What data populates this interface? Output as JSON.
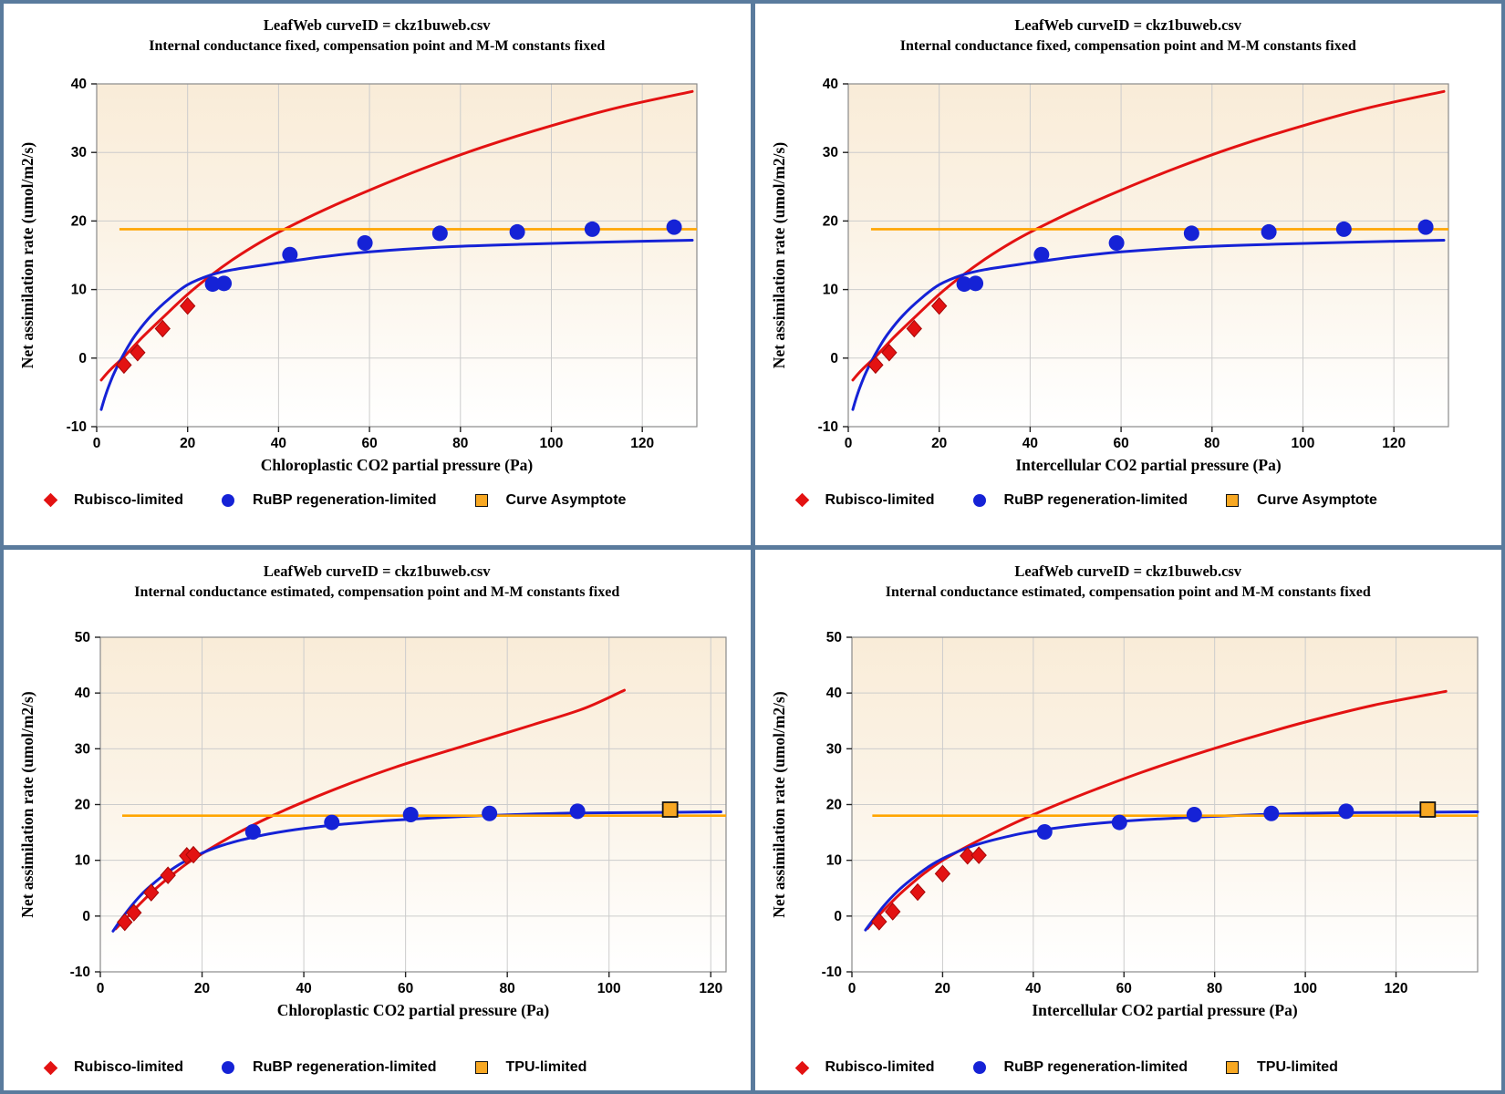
{
  "colors": {
    "red": "#e31212",
    "blue": "#1522d6",
    "orange_line": "#ffa500",
    "square_fill": "#f7a823",
    "grid": "#cccccc",
    "frame": "#8a8a8a",
    "border": "#5a7b9d",
    "plot_bg_top": "#f9ecd8",
    "plot_bg_bottom": "#ffffff",
    "text": "#000000"
  },
  "chart_data": [
    {
      "type": "scatter",
      "title": "LeafWeb curveID = ckz1buweb.csv",
      "subtitle": "Internal conductance fixed, compensation point and M-M constants fixed",
      "xlabel": "Chloroplastic CO2 partial pressure (Pa)",
      "ylabel": "Net assimilation rate (umol/m2/s)",
      "xlim": [
        0,
        132
      ],
      "ylim": [
        -10,
        40
      ],
      "xticks": [
        0,
        20,
        40,
        60,
        80,
        100,
        120
      ],
      "yticks": [
        -10,
        0,
        10,
        20,
        30,
        40
      ],
      "grid": true,
      "legend_position": "bottom",
      "asymptote": {
        "value": 18.8,
        "x_start": 5,
        "x_end": 132
      },
      "series": [
        {
          "name": "Rubisco-limited",
          "marker": "diamond",
          "points": [
            [
              6,
              -1.0
            ],
            [
              9,
              0.8
            ],
            [
              14.5,
              4.3
            ],
            [
              20,
              7.6
            ]
          ]
        },
        {
          "name": "RuBP regeneration-limited",
          "marker": "circle",
          "points": [
            [
              25.5,
              10.8
            ],
            [
              28,
              10.9
            ],
            [
              42.5,
              15.1
            ],
            [
              59,
              16.8
            ],
            [
              75.5,
              18.2
            ],
            [
              92.5,
              18.4
            ],
            [
              109,
              18.8
            ],
            [
              127,
              19.1
            ]
          ]
        },
        {
          "name": "Curve Asymptote",
          "marker": "square",
          "points": []
        }
      ],
      "curves": [
        {
          "name": "rubisco-curve",
          "color_key": "red",
          "points": [
            [
              1,
              -3.2
            ],
            [
              3,
              -1.7
            ],
            [
              6,
              0.2
            ],
            [
              10,
              3.0
            ],
            [
              15,
              6.2
            ],
            [
              20,
              9.3
            ],
            [
              25,
              12.0
            ],
            [
              30,
              14.4
            ],
            [
              36,
              16.9
            ],
            [
              41,
              18.7
            ],
            [
              50,
              21.6
            ],
            [
              60,
              24.5
            ],
            [
              72,
              27.7
            ],
            [
              85,
              30.8
            ],
            [
              100,
              33.9
            ],
            [
              115,
              36.6
            ],
            [
              131,
              38.9
            ]
          ]
        },
        {
          "name": "rubp-curve",
          "color_key": "blue",
          "points": [
            [
              1,
              -7.5
            ],
            [
              2,
              -5.3
            ],
            [
              3.5,
              -2.7
            ],
            [
              5,
              -0.6
            ],
            [
              7,
              1.8
            ],
            [
              9,
              3.8
            ],
            [
              12,
              6.2
            ],
            [
              16,
              8.7
            ],
            [
              20,
              10.7
            ],
            [
              25,
              12.1
            ],
            [
              30,
              12.9
            ],
            [
              40,
              13.9
            ],
            [
              50,
              14.8
            ],
            [
              60,
              15.5
            ],
            [
              76,
              16.2
            ],
            [
              93,
              16.6
            ],
            [
              110,
              16.9
            ],
            [
              131,
              17.2
            ]
          ]
        }
      ]
    },
    {
      "type": "scatter",
      "title": "LeafWeb curveID = ckz1buweb.csv",
      "subtitle": "Internal conductance fixed, compensation point and M-M constants fixed",
      "xlabel": "Intercellular CO2 partial pressure (Pa)",
      "ylabel": "Net assimilation rate (umol/m2/s)",
      "xlim": [
        0,
        132
      ],
      "ylim": [
        -10,
        40
      ],
      "xticks": [
        0,
        20,
        40,
        60,
        80,
        100,
        120
      ],
      "yticks": [
        -10,
        0,
        10,
        20,
        30,
        40
      ],
      "grid": true,
      "legend_position": "bottom",
      "asymptote": {
        "value": 18.8,
        "x_start": 5,
        "x_end": 132
      },
      "series": [
        {
          "name": "Rubisco-limited",
          "marker": "diamond",
          "points": [
            [
              6,
              -1.0
            ],
            [
              9,
              0.8
            ],
            [
              14.5,
              4.3
            ],
            [
              20,
              7.6
            ]
          ]
        },
        {
          "name": "RuBP regeneration-limited",
          "marker": "circle",
          "points": [
            [
              25.5,
              10.8
            ],
            [
              28,
              10.9
            ],
            [
              42.5,
              15.1
            ],
            [
              59,
              16.8
            ],
            [
              75.5,
              18.2
            ],
            [
              92.5,
              18.4
            ],
            [
              109,
              18.8
            ],
            [
              127,
              19.1
            ]
          ]
        },
        {
          "name": "Curve Asymptote",
          "marker": "square",
          "points": []
        }
      ],
      "curves": [
        {
          "name": "rubisco-curve",
          "color_key": "red",
          "points": [
            [
              1,
              -3.2
            ],
            [
              3,
              -1.7
            ],
            [
              6,
              0.2
            ],
            [
              10,
              3.0
            ],
            [
              15,
              6.2
            ],
            [
              20,
              9.3
            ],
            [
              25,
              12.0
            ],
            [
              30,
              14.4
            ],
            [
              36,
              16.9
            ],
            [
              41,
              18.7
            ],
            [
              50,
              21.6
            ],
            [
              60,
              24.5
            ],
            [
              72,
              27.7
            ],
            [
              85,
              30.8
            ],
            [
              100,
              33.9
            ],
            [
              115,
              36.6
            ],
            [
              131,
              38.9
            ]
          ]
        },
        {
          "name": "rubp-curve",
          "color_key": "blue",
          "points": [
            [
              1,
              -7.5
            ],
            [
              2,
              -5.3
            ],
            [
              3.5,
              -2.7
            ],
            [
              5,
              -0.6
            ],
            [
              7,
              1.8
            ],
            [
              9,
              3.8
            ],
            [
              12,
              6.2
            ],
            [
              16,
              8.7
            ],
            [
              20,
              10.7
            ],
            [
              25,
              12.1
            ],
            [
              30,
              12.9
            ],
            [
              40,
              13.9
            ],
            [
              50,
              14.8
            ],
            [
              60,
              15.5
            ],
            [
              76,
              16.2
            ],
            [
              93,
              16.6
            ],
            [
              110,
              16.9
            ],
            [
              131,
              17.2
            ]
          ]
        }
      ]
    },
    {
      "type": "scatter",
      "title": "LeafWeb curveID = ckz1buweb.csv",
      "subtitle": "Internal conductance estimated, compensation point and M-M constants fixed",
      "xlabel": "Chloroplastic CO2 partial pressure (Pa)",
      "ylabel": "Net assimilation rate (umol/m2/s)",
      "xlim": [
        0,
        123
      ],
      "ylim": [
        -10,
        50
      ],
      "xticks": [
        0,
        20,
        40,
        60,
        80,
        100,
        120
      ],
      "yticks": [
        -10,
        0,
        10,
        20,
        30,
        40,
        50
      ],
      "grid": true,
      "legend_position": "bottom",
      "asymptote": {
        "value": 18.0,
        "x_start": 4.3,
        "x_end": 123
      },
      "series": [
        {
          "name": "Rubisco-limited",
          "marker": "diamond",
          "points": [
            [
              4.8,
              -1.1
            ],
            [
              6.6,
              0.6
            ],
            [
              10,
              4.2
            ],
            [
              13.3,
              7.3
            ],
            [
              17,
              10.8
            ],
            [
              18.3,
              11.0
            ]
          ]
        },
        {
          "name": "RuBP regeneration-limited",
          "marker": "circle",
          "points": [
            [
              30,
              15.1
            ],
            [
              45.5,
              16.8
            ],
            [
              61,
              18.2
            ],
            [
              76.5,
              18.4
            ],
            [
              93.8,
              18.8
            ]
          ]
        },
        {
          "name": "TPU-limited",
          "marker": "square",
          "points": [
            [
              112,
              19.1
            ]
          ]
        }
      ],
      "curves": [
        {
          "name": "rubisco-curve",
          "color_key": "red",
          "points": [
            [
              3,
              -2.3
            ],
            [
              5.5,
              0.0
            ],
            [
              8,
              2.4
            ],
            [
              11,
              5.0
            ],
            [
              14,
              7.3
            ],
            [
              17,
              9.4
            ],
            [
              20,
              11.2
            ],
            [
              25,
              13.9
            ],
            [
              30,
              16.3
            ],
            [
              36,
              18.9
            ],
            [
              43,
              21.6
            ],
            [
              50,
              24.1
            ],
            [
              58,
              26.7
            ],
            [
              66,
              29.0
            ],
            [
              75,
              31.5
            ],
            [
              85,
              34.3
            ],
            [
              95,
              37.2
            ],
            [
              103,
              40.5
            ]
          ]
        },
        {
          "name": "rubp-curve",
          "color_key": "blue",
          "points": [
            [
              2.5,
              -2.7
            ],
            [
              4,
              -0.7
            ],
            [
              6,
              1.7
            ],
            [
              8,
              3.8
            ],
            [
              10,
              5.5
            ],
            [
              13,
              7.7
            ],
            [
              16,
              9.5
            ],
            [
              20,
              11.3
            ],
            [
              24,
              12.7
            ],
            [
              28,
              13.7
            ],
            [
              33,
              14.7
            ],
            [
              40,
              15.7
            ],
            [
              48,
              16.5
            ],
            [
              56,
              17.1
            ],
            [
              65,
              17.6
            ],
            [
              75,
              18.0
            ],
            [
              85,
              18.3
            ],
            [
              95,
              18.5
            ],
            [
              110,
              18.6
            ],
            [
              122,
              18.7
            ]
          ]
        }
      ]
    },
    {
      "type": "scatter",
      "title": "LeafWeb curveID = ckz1buweb.csv",
      "subtitle": "Internal conductance estimated, compensation point and M-M constants fixed",
      "xlabel": "Intercellular CO2 partial pressure (Pa)",
      "ylabel": "Net assimilation rate (umol/m2/s)",
      "xlim": [
        0,
        138
      ],
      "ylim": [
        -10,
        50
      ],
      "xticks": [
        0,
        20,
        40,
        60,
        80,
        100,
        120
      ],
      "yticks": [
        -10,
        0,
        10,
        20,
        30,
        40,
        50
      ],
      "grid": true,
      "legend_position": "bottom",
      "asymptote": {
        "value": 18.0,
        "x_start": 4.5,
        "x_end": 138
      },
      "series": [
        {
          "name": "Rubisco-limited",
          "marker": "diamond",
          "points": [
            [
              6,
              -1.0
            ],
            [
              9,
              0.8
            ],
            [
              14.5,
              4.3
            ],
            [
              20,
              7.6
            ],
            [
              25.5,
              10.8
            ],
            [
              28,
              10.9
            ]
          ]
        },
        {
          "name": "RuBP regeneration-limited",
          "marker": "circle",
          "points": [
            [
              42.5,
              15.1
            ],
            [
              59,
              16.8
            ],
            [
              75.5,
              18.2
            ],
            [
              92.5,
              18.4
            ],
            [
              109,
              18.8
            ]
          ]
        },
        {
          "name": "TPU-limited",
          "marker": "square",
          "points": [
            [
              127,
              19.1
            ]
          ]
        }
      ],
      "curves": [
        {
          "name": "rubisco-curve",
          "color_key": "red",
          "points": [
            [
              3.5,
              -2.2
            ],
            [
              6,
              0.2
            ],
            [
              9,
              2.7
            ],
            [
              12,
              5.0
            ],
            [
              16,
              7.7
            ],
            [
              20,
              10.0
            ],
            [
              25,
              12.3
            ],
            [
              30,
              14.4
            ],
            [
              37,
              17.1
            ],
            [
              45,
              19.9
            ],
            [
              54,
              22.8
            ],
            [
              64,
              25.8
            ],
            [
              75,
              28.8
            ],
            [
              87,
              31.8
            ],
            [
              100,
              34.8
            ],
            [
              115,
              37.8
            ],
            [
              131,
              40.3
            ]
          ]
        },
        {
          "name": "rubp-curve",
          "color_key": "blue",
          "points": [
            [
              3,
              -2.5
            ],
            [
              5,
              -0.3
            ],
            [
              7,
              1.8
            ],
            [
              10,
              4.4
            ],
            [
              13,
              6.5
            ],
            [
              17,
              8.9
            ],
            [
              21,
              10.7
            ],
            [
              26,
              12.4
            ],
            [
              31,
              13.6
            ],
            [
              38,
              14.9
            ],
            [
              46,
              15.9
            ],
            [
              55,
              16.7
            ],
            [
              65,
              17.3
            ],
            [
              77,
              17.8
            ],
            [
              90,
              18.2
            ],
            [
              105,
              18.5
            ],
            [
              120,
              18.6
            ],
            [
              138,
              18.7
            ]
          ]
        }
      ]
    }
  ]
}
